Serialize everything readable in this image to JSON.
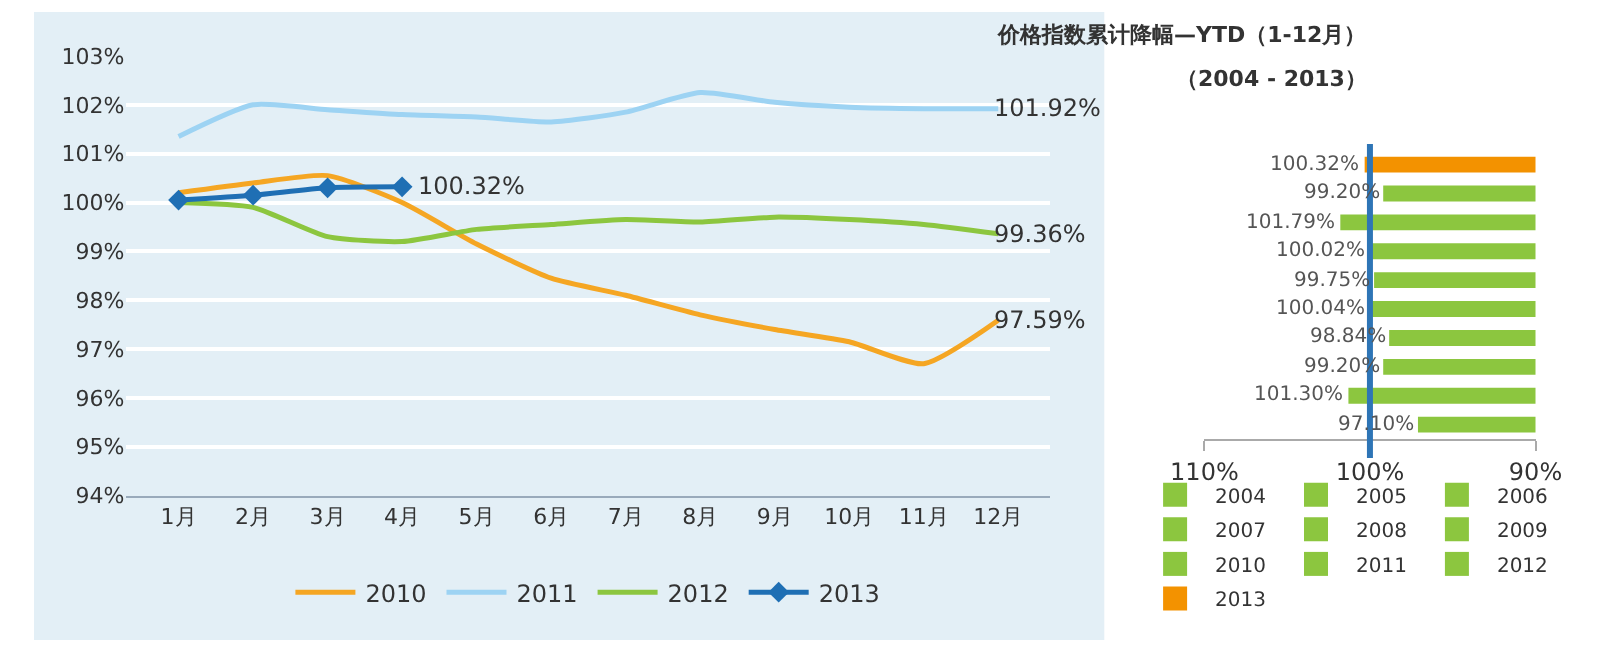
{
  "chart_data": [
    {
      "type": "line",
      "categories": [
        "1月",
        "2月",
        "3月",
        "4月",
        "5月",
        "6月",
        "7月",
        "8月",
        "9月",
        "10月",
        "11月",
        "12月"
      ],
      "ylim": [
        94,
        103
      ],
      "yticks": [
        {
          "value": 94,
          "label": "94%"
        },
        {
          "value": 95,
          "label": "95%"
        },
        {
          "value": 96,
          "label": "96%"
        },
        {
          "value": 97,
          "label": "97%"
        },
        {
          "value": 98,
          "label": "98%"
        },
        {
          "value": 99,
          "label": "99%"
        },
        {
          "value": 100,
          "label": "100%"
        },
        {
          "value": 101,
          "label": "101%"
        },
        {
          "value": 102,
          "label": "102%"
        },
        {
          "value": 103,
          "label": "103%"
        }
      ],
      "grid": "y",
      "legend": "bottom",
      "series": [
        {
          "name": "2010",
          "color": "#f5a623",
          "values": [
            100.2,
            100.4,
            100.55,
            100.0,
            99.15,
            98.45,
            98.1,
            97.7,
            97.4,
            97.15,
            96.7,
            97.59
          ],
          "value_labels": [
            null,
            null,
            null,
            null,
            null,
            null,
            null,
            null,
            null,
            null,
            null,
            "97.59%"
          ]
        },
        {
          "name": "2011",
          "color": "#9dd3f3",
          "values": [
            101.35,
            102.0,
            101.9,
            101.8,
            101.75,
            101.65,
            101.85,
            102.25,
            102.05,
            101.95,
            101.92,
            101.92
          ],
          "value_labels": [
            null,
            null,
            null,
            null,
            null,
            null,
            null,
            null,
            null,
            null,
            null,
            "101.92%"
          ]
        },
        {
          "name": "2012",
          "color": "#8cc63f",
          "values": [
            100.0,
            99.9,
            99.3,
            99.2,
            99.45,
            99.55,
            99.65,
            99.6,
            99.7,
            99.65,
            99.55,
            99.36
          ],
          "value_labels": [
            null,
            null,
            null,
            null,
            null,
            null,
            null,
            null,
            null,
            null,
            null,
            "99.36%"
          ]
        },
        {
          "name": "2013",
          "color": "#1f6fb4",
          "marker": "diamond",
          "values": [
            100.05,
            100.15,
            100.3,
            100.32,
            null,
            null,
            null,
            null,
            null,
            null,
            null,
            null
          ],
          "value_labels": [
            null,
            null,
            null,
            "100.32%",
            null,
            null,
            null,
            null,
            null,
            null,
            null,
            null
          ]
        }
      ]
    },
    {
      "type": "bar",
      "orientation": "horizontal",
      "title": "价格指数累计降幅—YTD（1-12月）",
      "subtitle": "（2004 - 2013）",
      "categories": [
        null,
        null,
        null,
        null,
        null,
        null,
        null,
        null,
        null,
        null
      ],
      "series": [
        {
          "name": "2004",
          "color": "#8cc63f",
          "values": [
            null,
            null,
            null,
            null,
            null,
            null,
            null,
            null,
            null,
            97.1
          ],
          "value_labels": [
            null,
            null,
            null,
            null,
            null,
            null,
            null,
            null,
            null,
            "97.10%"
          ]
        },
        {
          "name": "2005",
          "color": "#8cc63f",
          "values": [
            null,
            null,
            null,
            null,
            null,
            null,
            null,
            null,
            101.3,
            null
          ],
          "value_labels": [
            null,
            null,
            null,
            null,
            null,
            null,
            null,
            null,
            "101.30%",
            null
          ]
        },
        {
          "name": "2006",
          "color": "#8cc63f",
          "values": [
            null,
            null,
            null,
            null,
            null,
            null,
            null,
            99.2,
            null,
            null
          ],
          "value_labels": [
            null,
            null,
            null,
            null,
            null,
            null,
            null,
            "99.20%",
            null,
            null
          ]
        },
        {
          "name": "2007",
          "color": "#8cc63f",
          "values": [
            null,
            null,
            null,
            null,
            null,
            null,
            98.84,
            null,
            null,
            null
          ],
          "value_labels": [
            null,
            null,
            null,
            null,
            null,
            null,
            "98.84%",
            null,
            null,
            null
          ]
        },
        {
          "name": "2008",
          "color": "#8cc63f",
          "values": [
            null,
            null,
            null,
            null,
            null,
            100.04,
            null,
            null,
            null,
            null
          ],
          "value_labels": [
            null,
            null,
            null,
            null,
            null,
            "100.04%",
            null,
            null,
            null,
            null
          ]
        },
        {
          "name": "2009",
          "color": "#8cc63f",
          "values": [
            null,
            null,
            null,
            null,
            99.75,
            null,
            null,
            null,
            null,
            null
          ],
          "value_labels": [
            null,
            null,
            null,
            null,
            "99.75%",
            null,
            null,
            null,
            null,
            null
          ]
        },
        {
          "name": "2010",
          "color": "#8cc63f",
          "values": [
            null,
            null,
            null,
            100.02,
            null,
            null,
            null,
            null,
            null,
            null
          ],
          "value_labels": [
            null,
            null,
            null,
            "100.02%",
            null,
            null,
            null,
            null,
            null,
            null
          ]
        },
        {
          "name": "2011",
          "color": "#8cc63f",
          "values": [
            null,
            null,
            101.79,
            null,
            null,
            null,
            null,
            null,
            null,
            null
          ],
          "value_labels": [
            null,
            null,
            "101.79%",
            null,
            null,
            null,
            null,
            null,
            null,
            null
          ]
        },
        {
          "name": "2012",
          "color": "#8cc63f",
          "values": [
            null,
            99.2,
            null,
            null,
            null,
            null,
            null,
            null,
            null,
            null
          ],
          "value_labels": [
            null,
            "99.20%",
            null,
            null,
            null,
            null,
            null,
            null,
            null,
            null
          ]
        },
        {
          "name": "2013",
          "color": "#f39200",
          "values": [
            100.32,
            null,
            null,
            null,
            null,
            null,
            null,
            null,
            null,
            null
          ],
          "value_labels": [
            "100.32%",
            null,
            null,
            null,
            null,
            null,
            null,
            null,
            null,
            null
          ]
        }
      ],
      "xlim": [
        110,
        90
      ],
      "xticks": [
        {
          "value": 110,
          "label": "110%"
        },
        {
          "value": 100,
          "label": "100%"
        },
        {
          "value": 90,
          "label": "90%"
        }
      ],
      "ref_lines": [
        {
          "axis": "x",
          "value": 100,
          "color": "#2e75b6"
        }
      ],
      "tick_labels": "x",
      "grid": false,
      "legend": "bottom"
    }
  ]
}
